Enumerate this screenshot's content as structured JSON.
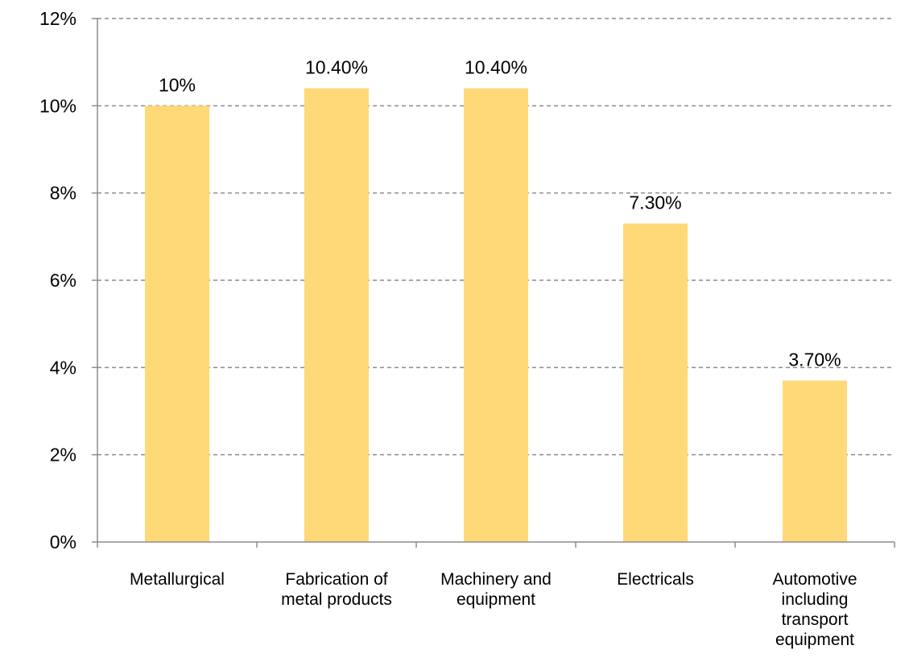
{
  "chart_data": {
    "type": "bar",
    "categories": [
      [
        "Metallurgical"
      ],
      [
        "Fabrication of",
        "metal products"
      ],
      [
        "Machinery and",
        "equipment"
      ],
      [
        "Electricals"
      ],
      [
        "Automotive",
        "including",
        "transport",
        "equipment"
      ]
    ],
    "values": [
      10,
      10.4,
      10.4,
      7.3,
      3.7
    ],
    "data_labels": [
      "10%",
      "10.40%",
      "10.40%",
      "7.30%",
      "3.70%"
    ],
    "ylim": [
      0,
      12
    ],
    "y_ticks": [
      0,
      2,
      4,
      6,
      8,
      10,
      12
    ],
    "y_tick_labels": [
      "0%",
      "2%",
      "4%",
      "6%",
      "8%",
      "10%",
      "12%"
    ],
    "title": "",
    "xlabel": "",
    "ylabel": "",
    "grid": true,
    "bar_color": "#FFD878",
    "grid_color": "#8C8C8C"
  }
}
